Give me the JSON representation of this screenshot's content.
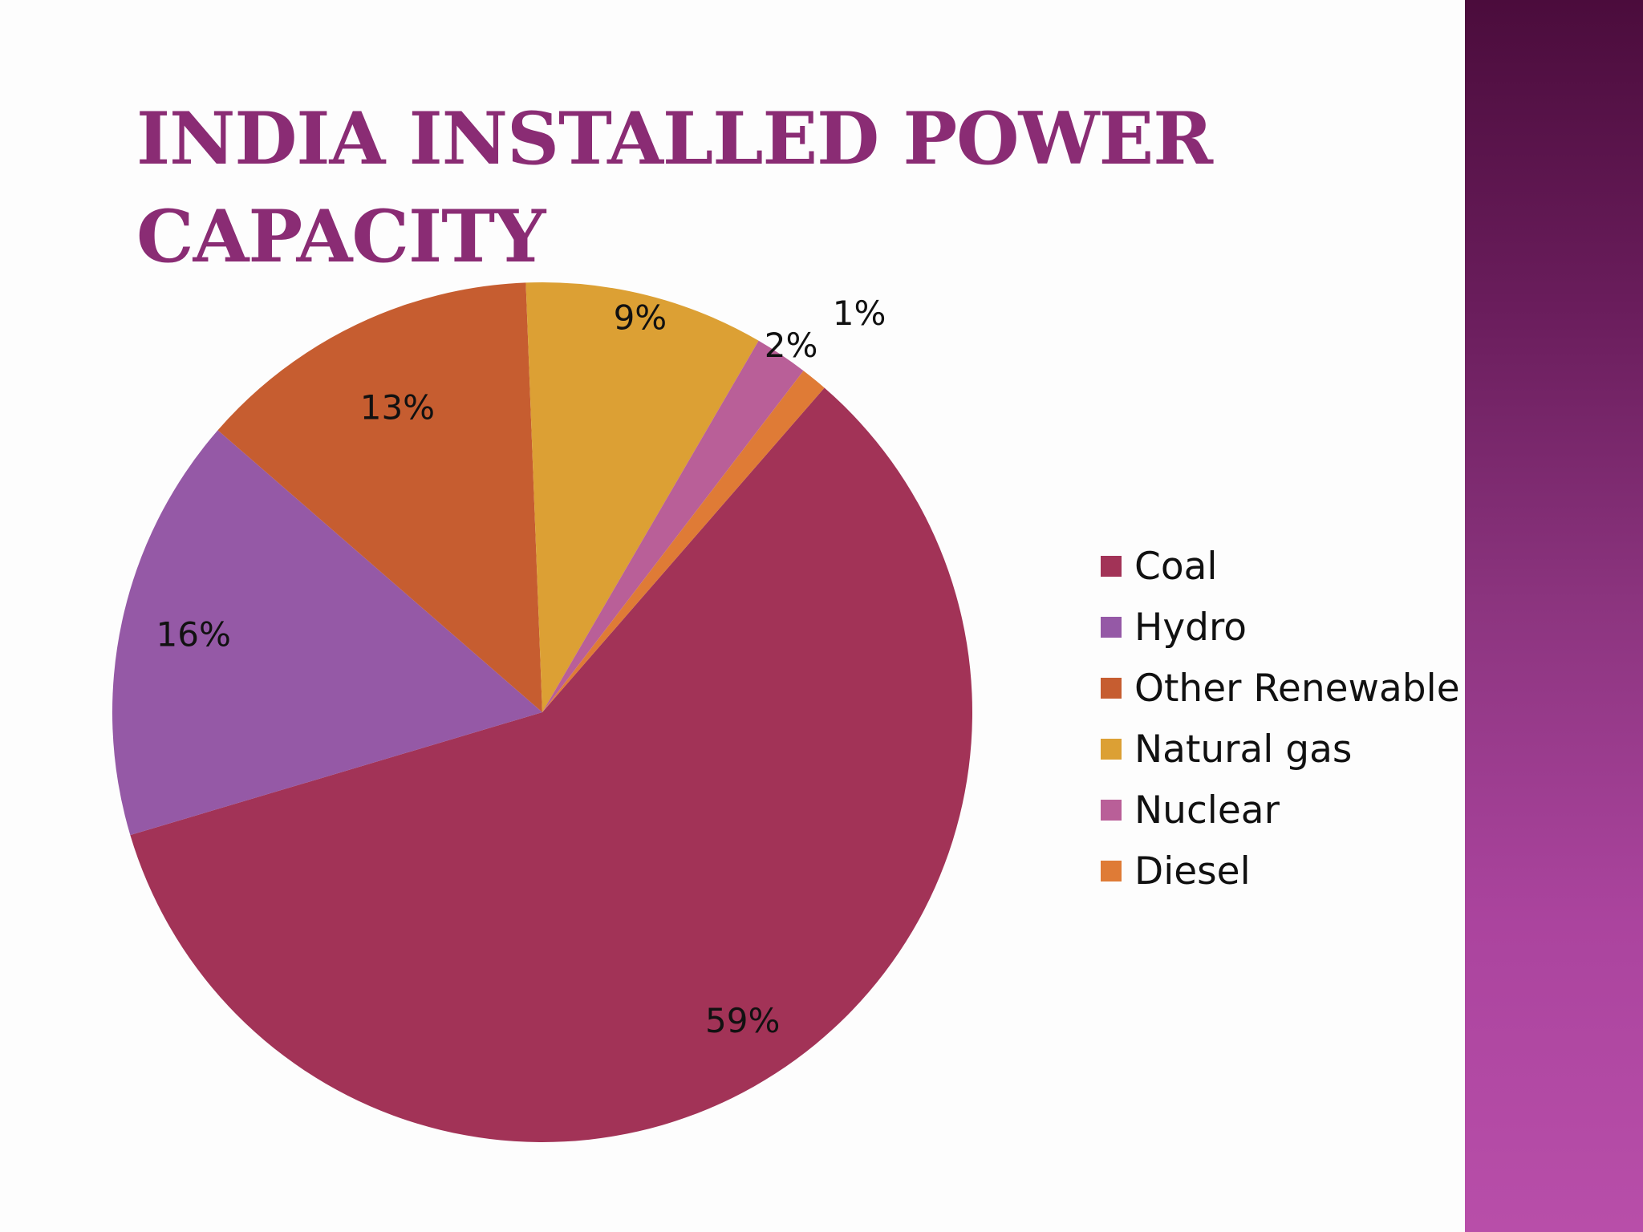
{
  "slide": {
    "title": "India  Installed Power Capacity"
  },
  "chart_data": {
    "type": "pie",
    "title": "",
    "start_angle_deg": 41,
    "direction": "clockwise",
    "slices": [
      {
        "name": "Coal",
        "value": 59,
        "label": "59%",
        "color": "#a23357"
      },
      {
        "name": "Hydro",
        "value": 16,
        "label": "16%",
        "color": "#9559a6"
      },
      {
        "name": "Other Renewable",
        "value": 13,
        "label": "13%",
        "color": "#c65d30"
      },
      {
        "name": "Natural gas",
        "value": 9,
        "label": "9%",
        "color": "#dca034"
      },
      {
        "name": "Nuclear",
        "value": 2,
        "label": "2%",
        "color": "#b95f98"
      },
      {
        "name": "Diesel",
        "value": 1,
        "label": "1%",
        "color": "#df7b36"
      }
    ],
    "legend_position": "right"
  }
}
